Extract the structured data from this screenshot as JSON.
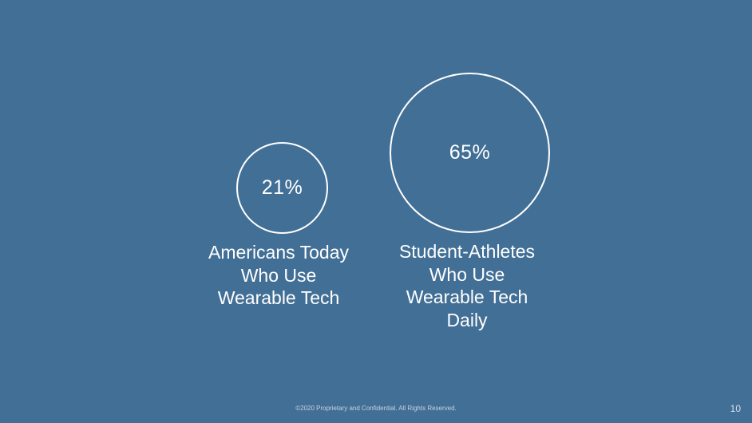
{
  "slide": {
    "background_color": "#426F96",
    "stats": [
      {
        "value": "21%",
        "label": "Americans Today\nWho Use\nWearable Tech"
      },
      {
        "value": "65%",
        "label": "Student-Athletes\nWho Use\nWearable Tech\nDaily"
      }
    ],
    "footer": "©2020 Proprietary and Confidential. All Rights Reserved.",
    "page_number": "10"
  }
}
